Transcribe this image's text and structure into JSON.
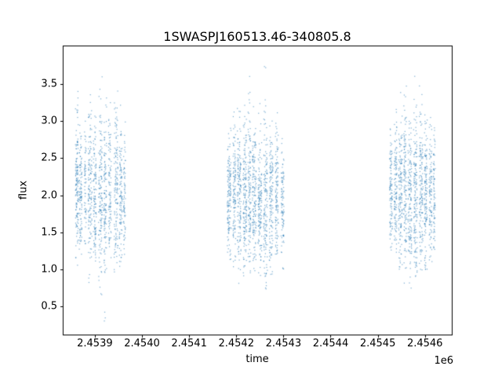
{
  "chart_data": {
    "type": "scatter",
    "title": "1SWASPJ160513.46-340805.8",
    "xlabel": "time",
    "ylabel": "flux",
    "x_offset_label": "1e6",
    "xlim": [
      2453832,
      2454657
    ],
    "ylim": [
      0.12,
      4.02
    ],
    "xticks": [
      2453900,
      2454000,
      2454100,
      2454200,
      2454300,
      2454400,
      2454500,
      2454600
    ],
    "xtick_labels": [
      "2.4539",
      "2.4540",
      "2.4541",
      "2.4542",
      "2.4543",
      "2.4544",
      "2.4545",
      "2.4546"
    ],
    "yticks": [
      0.5,
      1.0,
      1.5,
      2.0,
      2.5,
      3.0,
      3.5
    ],
    "ytick_labels": [
      "0.5",
      "1.0",
      "1.5",
      "2.0",
      "2.5",
      "3.0",
      "3.5"
    ],
    "grid": false,
    "legend": "none",
    "background_color": "#ffffff",
    "frame_color": "#000000",
    "marker_color": "#1f77b4",
    "marker_alpha": 0.6,
    "marker_size_px": 1.2,
    "seed": 7,
    "cluster_fields": [
      "x_center_time",
      "x_halfwidth_days",
      "n_points",
      "flux_mean",
      "flux_sd",
      "flux_min",
      "flux_max"
    ],
    "clusters": [
      [
        2453862,
        3,
        150,
        2.1,
        0.5,
        1.05,
        3.45
      ],
      [
        2453870,
        3,
        110,
        2.0,
        0.42,
        1.2,
        3.0
      ],
      [
        2453880,
        2,
        60,
        2.2,
        0.48,
        1.3,
        3.1
      ],
      [
        2453890,
        4,
        140,
        2.1,
        0.52,
        0.8,
        3.4
      ],
      [
        2453900,
        3,
        120,
        2.0,
        0.48,
        1.1,
        3.2
      ],
      [
        2453912,
        4,
        150,
        2.1,
        0.57,
        0.6,
        3.65
      ],
      [
        2453922,
        3,
        120,
        2.0,
        0.55,
        0.3,
        3.6
      ],
      [
        2453932,
        3,
        100,
        2.05,
        0.5,
        1.0,
        3.3
      ],
      [
        2453945,
        4,
        140,
        2.1,
        0.55,
        0.9,
        3.65
      ],
      [
        2453955,
        3,
        110,
        2.0,
        0.5,
        1.0,
        3.4
      ],
      [
        2453963,
        2,
        70,
        2.1,
        0.45,
        1.2,
        3.0
      ],
      [
        2454185,
        4,
        150,
        1.95,
        0.45,
        1.1,
        3.0
      ],
      [
        2454196,
        3,
        120,
        2.0,
        0.5,
        1.0,
        3.2
      ],
      [
        2454206,
        4,
        150,
        2.0,
        0.5,
        0.55,
        3.4
      ],
      [
        2454218,
        4,
        160,
        1.95,
        0.5,
        0.9,
        3.5
      ],
      [
        2454228,
        3,
        130,
        2.0,
        0.55,
        0.9,
        3.8
      ],
      [
        2454238,
        4,
        150,
        1.95,
        0.5,
        0.8,
        3.4
      ],
      [
        2454250,
        4,
        150,
        1.9,
        0.5,
        0.9,
        3.3
      ],
      [
        2454262,
        4,
        150,
        1.95,
        0.55,
        0.7,
        3.75
      ],
      [
        2454274,
        4,
        140,
        1.9,
        0.5,
        0.9,
        3.3
      ],
      [
        2454286,
        3,
        120,
        1.95,
        0.5,
        1.0,
        3.2
      ],
      [
        2454298,
        3,
        100,
        1.9,
        0.45,
        1.0,
        3.1
      ],
      [
        2454528,
        3,
        110,
        2.0,
        0.45,
        1.2,
        3.0
      ],
      [
        2454538,
        3,
        120,
        2.05,
        0.5,
        1.1,
        3.2
      ],
      [
        2454548,
        4,
        150,
        2.0,
        0.5,
        0.9,
        3.4
      ],
      [
        2454558,
        3,
        130,
        2.05,
        0.55,
        0.8,
        3.6
      ],
      [
        2454568,
        4,
        150,
        2.0,
        0.5,
        0.5,
        3.5
      ],
      [
        2454580,
        4,
        160,
        2.0,
        0.55,
        0.9,
        3.85
      ],
      [
        2454592,
        4,
        150,
        2.0,
        0.5,
        0.9,
        3.5
      ],
      [
        2454602,
        3,
        130,
        2.0,
        0.5,
        1.0,
        3.3
      ],
      [
        2454612,
        3,
        110,
        2.05,
        0.45,
        1.1,
        3.2
      ],
      [
        2454620,
        2,
        80,
        2.0,
        0.45,
        1.2,
        3.0
      ]
    ]
  }
}
